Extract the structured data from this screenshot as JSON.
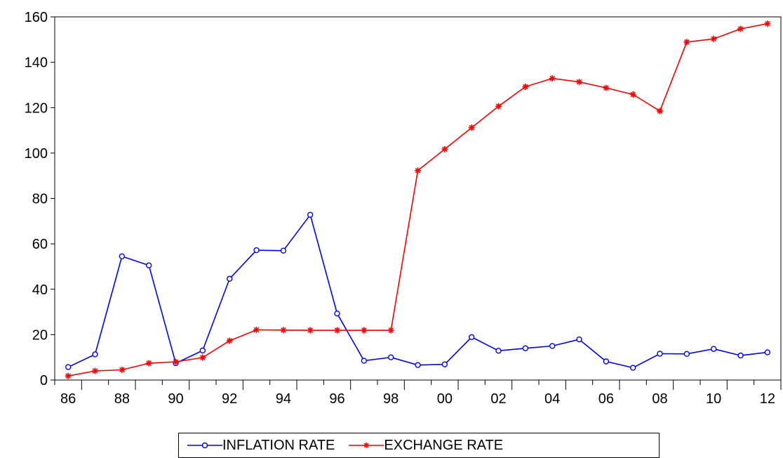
{
  "chart_data": {
    "type": "line",
    "x": [
      "86",
      "87",
      "88",
      "89",
      "90",
      "91",
      "92",
      "93",
      "94",
      "95",
      "96",
      "97",
      "98",
      "99",
      "00",
      "01",
      "02",
      "03",
      "04",
      "05",
      "06",
      "07",
      "08",
      "09",
      "10",
      "11",
      "12"
    ],
    "tick_labels": [
      "86",
      "88",
      "90",
      "92",
      "94",
      "96",
      "98",
      "00",
      "02",
      "04",
      "06",
      "08",
      "10",
      "12"
    ],
    "ylim": [
      0,
      160
    ],
    "yticks": [
      0,
      20,
      40,
      60,
      80,
      100,
      120,
      140,
      160
    ],
    "grid": false,
    "legend_position": "bottom",
    "series": [
      {
        "name": "INFLATION RATE",
        "color": "#0000ff",
        "marker": "circle",
        "values": [
          5.7,
          11.3,
          54.5,
          50.5,
          7.4,
          13.0,
          44.6,
          57.2,
          57.0,
          72.8,
          29.3,
          8.5,
          10.0,
          6.6,
          6.9,
          18.9,
          12.9,
          14.0,
          15.0,
          17.9,
          8.2,
          5.4,
          11.6,
          11.5,
          13.7,
          10.8,
          12.2
        ]
      },
      {
        "name": "EXCHANGE RATE",
        "color": "#ff0000",
        "marker": "star",
        "values": [
          1.8,
          4.0,
          4.5,
          7.4,
          8.0,
          9.9,
          17.3,
          22.1,
          22.0,
          21.9,
          21.9,
          21.9,
          21.9,
          92.3,
          101.7,
          111.2,
          120.6,
          129.2,
          132.9,
          131.3,
          128.7,
          125.8,
          118.5,
          148.9,
          150.3,
          154.7,
          157.0
        ]
      }
    ]
  }
}
